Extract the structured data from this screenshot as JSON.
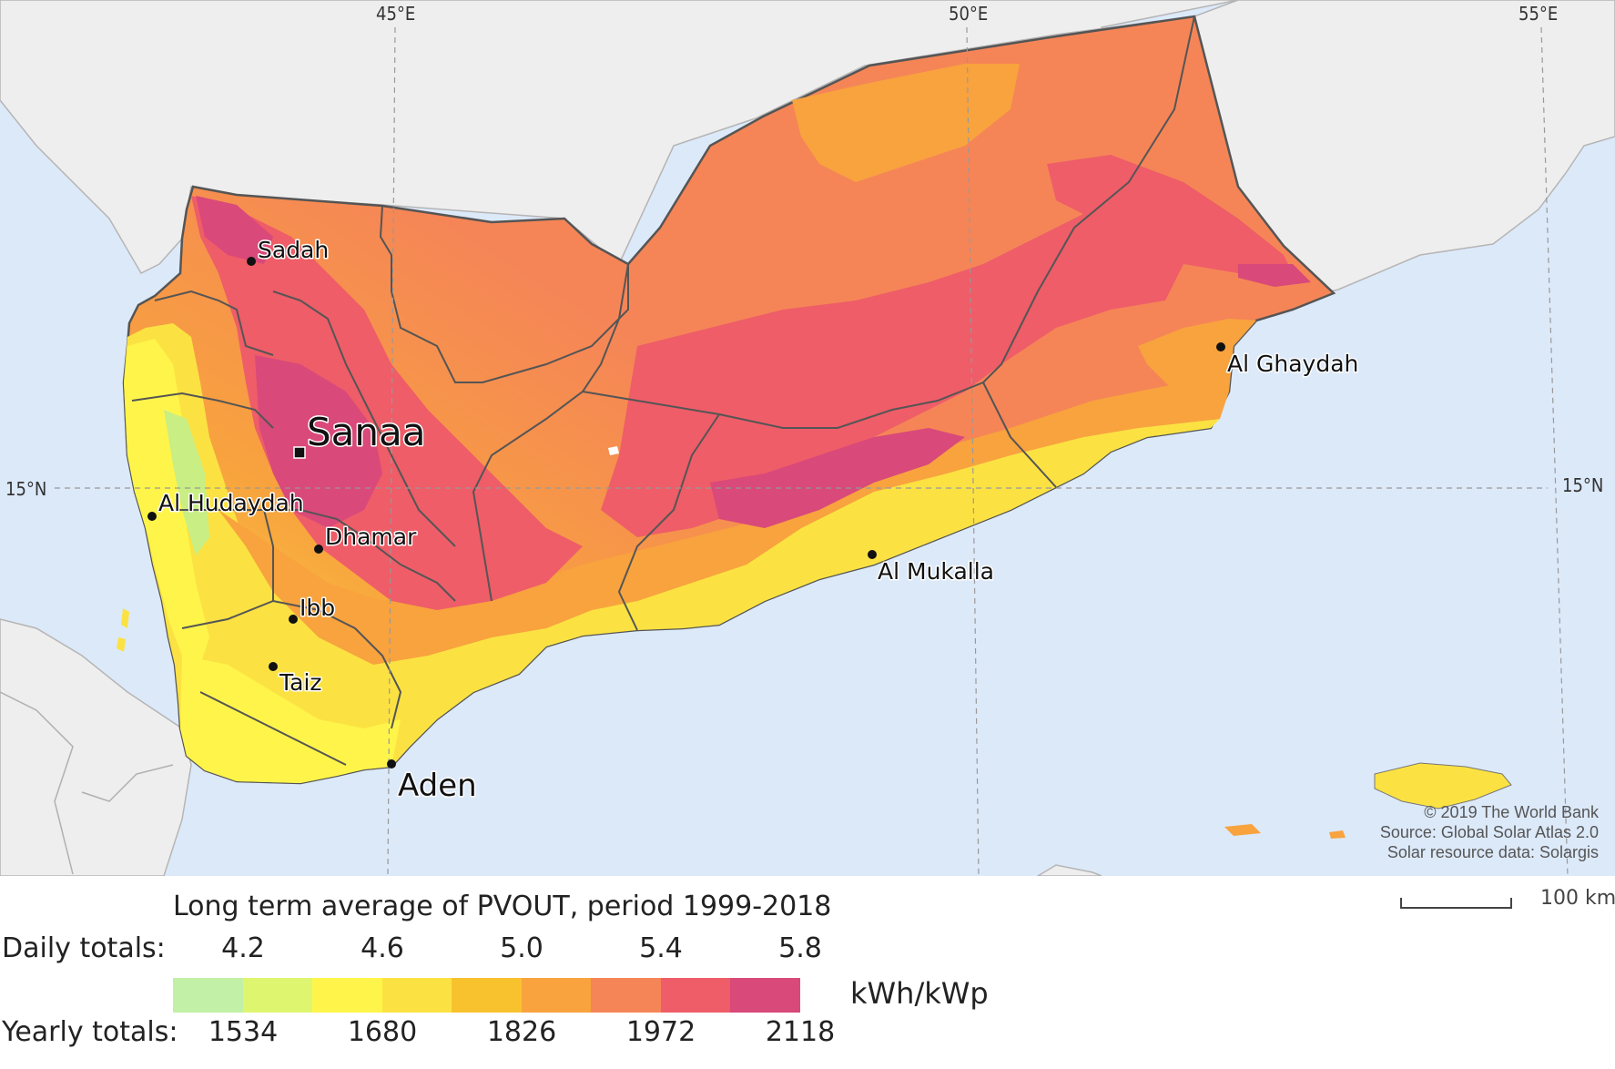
{
  "map": {
    "graticule": {
      "lon_labels": [
        "45°E",
        "50°E",
        "55°E"
      ],
      "lat_labels_left": [
        "15°N"
      ],
      "lat_labels_right": [
        "15°N"
      ]
    },
    "cities": [
      {
        "name": "Sadah",
        "symbol": "dot"
      },
      {
        "name": "Sanaa",
        "symbol": "capital"
      },
      {
        "name": "Al Hudaydah",
        "symbol": "dot"
      },
      {
        "name": "Dhamar",
        "symbol": "dot"
      },
      {
        "name": "Ibb",
        "symbol": "dot"
      },
      {
        "name": "Taiz",
        "symbol": "dot"
      },
      {
        "name": "Aden",
        "symbol": "dot"
      },
      {
        "name": "Al Mukalla",
        "symbol": "dot"
      },
      {
        "name": "Al Ghaydah",
        "symbol": "dot"
      }
    ],
    "credits": [
      "© 2019 The World Bank",
      "Source: Global Solar Atlas 2.0",
      "Solar resource data: Solargis"
    ],
    "colors": {
      "sea": "#dce9f9",
      "land_outside": "#eeeeee",
      "border": "#555555"
    }
  },
  "legend": {
    "title": "Long term average of PVOUT, period 1999-2018",
    "daily_label": "Daily totals:",
    "yearly_label": "Yearly totals:",
    "daily_ticks": [
      "4.2",
      "4.6",
      "5.0",
      "5.4",
      "5.8"
    ],
    "yearly_ticks": [
      "1534",
      "1680",
      "1826",
      "1972",
      "2118"
    ],
    "unit": "kWh/kWp",
    "colors": [
      "#c2f0a6",
      "#def56f",
      "#fff54a",
      "#fbe242",
      "#f8c22e",
      "#f8a33e",
      "#f58557",
      "#ee5d68",
      "#d9497a"
    ],
    "scale_label": "100 km"
  }
}
